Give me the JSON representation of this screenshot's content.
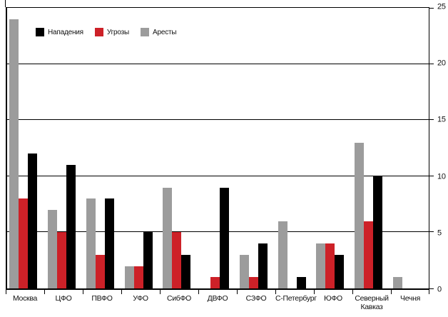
{
  "chart_data": {
    "type": "bar",
    "title": "",
    "xlabel": "",
    "ylabel": "",
    "categories": [
      "Москва",
      "ЦФО",
      "ПВФО",
      "УФО",
      "СибФО",
      "ДВФО",
      "СЗФО",
      "С-Петербург",
      "ЮФО",
      "Северный Кавказ",
      "Чечня"
    ],
    "series": [
      {
        "name": "Нападения",
        "color": "#000000",
        "values": [
          12,
          11,
          8,
          5,
          3,
          9,
          4,
          1,
          3,
          10,
          0
        ]
      },
      {
        "name": "Угрозы",
        "color": "#cd2128",
        "values": [
          8,
          5,
          3,
          2,
          5,
          1,
          1,
          0,
          4,
          6,
          0
        ]
      },
      {
        "name": "Аресты",
        "color": "#9c9c9c",
        "values": [
          24,
          7,
          8,
          2,
          9,
          0,
          3,
          6,
          4,
          13,
          1
        ]
      }
    ],
    "group_series_order": [
      2,
      1,
      0
    ],
    "ylim": [
      0,
      25
    ],
    "yticks": [
      0,
      5,
      10,
      15,
      20,
      25
    ],
    "y_axis_side": "right",
    "grid": true,
    "legend_position": "top-left-inside"
  },
  "colors": {
    "background": "#ffffff",
    "frame": "#000000",
    "gridline": "#000000",
    "attacks": "#000000",
    "threats": "#cd2128",
    "arrests": "#9c9c9c"
  }
}
